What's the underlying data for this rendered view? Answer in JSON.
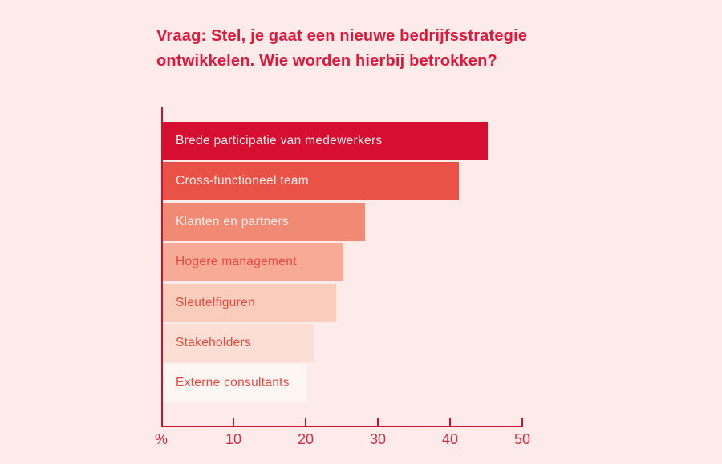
{
  "header": {
    "title_line1": "Vraag: Stel, je gaat een nieuwe bedrijfsstrategie",
    "title_line2": "ontwikkelen. Wie worden hierbij betrokken?"
  },
  "chart_data": {
    "type": "bar",
    "orientation": "horizontal",
    "title": "Vraag: Stel, je gaat een nieuwe bedrijfsstrategie ontwikkelen. Wie worden hierbij betrokken?",
    "categories": [
      "Brede participatie van medewerkers",
      "Cross-functioneel team",
      "Klanten en partners",
      "Hogere management",
      "Sleutelfiguren",
      "Stakeholders",
      "Externe consultants"
    ],
    "values": [
      45,
      41,
      28,
      25,
      24,
      21,
      20
    ],
    "xlabel": "%",
    "xlim": [
      0,
      50
    ],
    "xticks": [
      10,
      20,
      30,
      40,
      50
    ],
    "grid": false,
    "legend": false,
    "colors": {
      "background": "#fcebe8",
      "title_text": "#e0173a",
      "axis": "#cf1031",
      "tick_text": "#d62b45",
      "bar_fills": [
        "#d60f32",
        "#ea5247",
        "#f08a74",
        "#f7ab96",
        "#f9ccbc",
        "#fcded4",
        "#fef6f3"
      ],
      "bar_label_text": [
        "#fdeeea",
        "#fdeeea",
        "#fdeeea",
        "#e8473b",
        "#e8473b",
        "#e8473b",
        "#e8473b"
      ]
    }
  }
}
